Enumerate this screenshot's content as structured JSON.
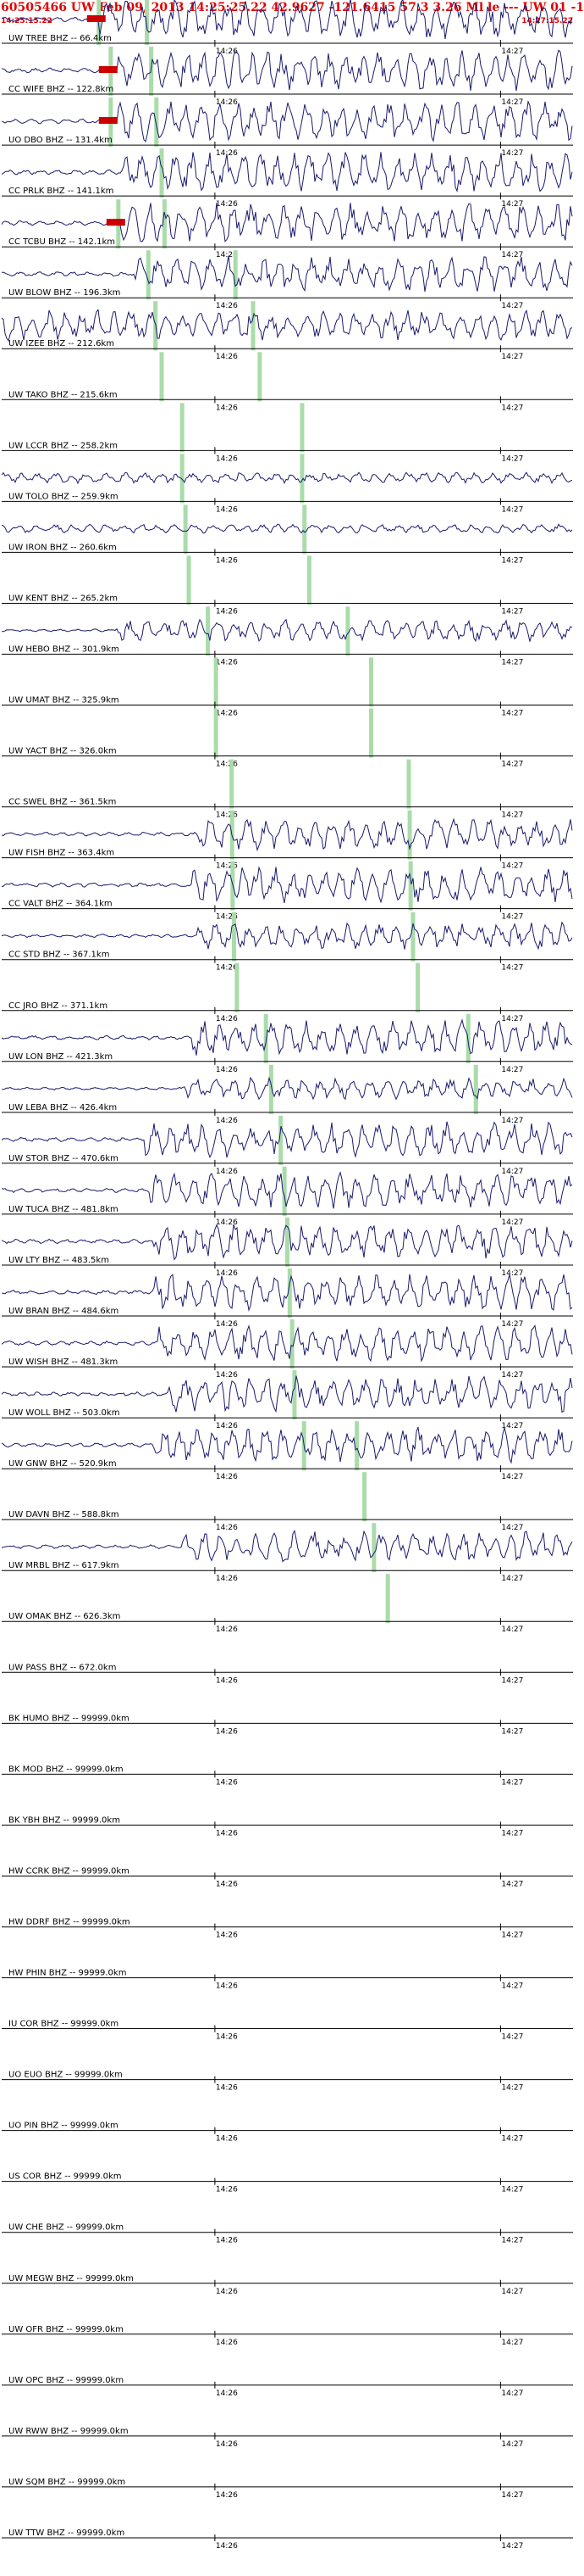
{
  "header": {
    "title": "60505466 UW Feb 09, 2013 14:25:25.22   42.9627 -121.6415 57.3 3.26 Ml le --- UW 01  -1",
    "start_time": "14:25:15.22",
    "end_time": "14:27:15.22"
  },
  "colors": {
    "trace": "#1a1a6e",
    "axis": "#000000",
    "pick": "#aadcaa",
    "marker": "#cc0000",
    "title": "#e00000"
  },
  "chart_data": {
    "type": "line",
    "x_unit": "seconds after 14:25:15.22",
    "xlim": [
      0,
      120
    ],
    "tick_labels": [
      "14:26",
      "14:27"
    ],
    "channels": [
      {
        "label": "UW TREE BHZ -- 66.4km",
        "amp": 0.9,
        "onset": 20.6,
        "p": 20.4,
        "s": 30.5,
        "marker": true
      },
      {
        "label": "CC WIFE BHZ -- 122.8km",
        "amp": 0.9,
        "onset": 24.0,
        "p": 22.9,
        "s": 31.4,
        "marker": true
      },
      {
        "label": "UO DBO BHZ -- 131.4km",
        "amp": 0.9,
        "onset": 24.0,
        "p": 22.9,
        "s": 32.5,
        "marker": true
      },
      {
        "label": "CC PRLK BHZ -- 141.1km",
        "amp": 0.9,
        "onset": 25.2,
        "p": null,
        "s": 33.6
      },
      {
        "label": "CC TCBU BHZ -- 142.1km",
        "amp": 0.9,
        "onset": 25.2,
        "p": 24.5,
        "s": 34.2,
        "marker": true
      },
      {
        "label": "UW BLOW BHZ -- 196.3km",
        "amp": 0.8,
        "onset": 28.0,
        "p": 30.8,
        "s": 49.1
      },
      {
        "label": "UW IZEE BHZ -- 212.6km",
        "amp": 0.7,
        "onset": 0,
        "p": 32.3,
        "s": 52.8
      },
      {
        "label": "UW TAKO BHZ -- 215.6km",
        "amp": 0,
        "onset": 0,
        "p": 33.6,
        "s": 54.2
      },
      {
        "label": "UW LCCR BHZ -- 258.2km",
        "amp": 0,
        "onset": 0,
        "p": 37.9,
        "s": 63.1
      },
      {
        "label": "UW TOLO BHZ -- 259.9km",
        "amp": 0.25,
        "onset": 0,
        "p": 37.9,
        "s": 63.1
      },
      {
        "label": "UW IRON BHZ -- 260.6km",
        "amp": 0.2,
        "onset": 0,
        "p": 38.6,
        "s": 63.6
      },
      {
        "label": "UW KENT BHZ -- 265.2km",
        "amp": 0,
        "onset": 0,
        "p": 39.3,
        "s": 64.6
      },
      {
        "label": "UW HEBO BHZ -- 301.9km",
        "amp": 0.5,
        "onset": 24.0,
        "p": 43.3,
        "s": 72.7
      },
      {
        "label": "UW UMAT BHZ -- 325.9km",
        "amp": 0,
        "onset": 0,
        "p": 45.0,
        "s": 77.6
      },
      {
        "label": "UW YACT BHZ -- 326.0km",
        "amp": 0,
        "onset": 0,
        "p": 45.0,
        "s": 77.6
      },
      {
        "label": "CC SWEL BHZ -- 361.5km",
        "amp": 0,
        "onset": 0,
        "p": 48.3,
        "s": 85.5
      },
      {
        "label": "UW FISH BHZ -- 363.4km",
        "amp": 0.7,
        "onset": 41.0,
        "p": 48.4,
        "s": 85.7
      },
      {
        "label": "CC VALT BHZ -- 364.1km",
        "amp": 0.8,
        "onset": 40.0,
        "p": 48.5,
        "s": 85.9
      },
      {
        "label": "CC STD BHZ -- 367.1km",
        "amp": 0.6,
        "onset": 41.0,
        "p": 48.8,
        "s": 86.4
      },
      {
        "label": "CC JRO BHZ -- 371.1km",
        "amp": 0,
        "onset": 0,
        "p": 49.4,
        "s": 87.4
      },
      {
        "label": "UW LON BHZ -- 421.3km",
        "amp": 0.8,
        "onset": 40.0,
        "p": 55.5,
        "s": 98.0
      },
      {
        "label": "UW LEBA BHZ -- 426.4km",
        "amp": 0.5,
        "onset": 38.0,
        "p": 56.6,
        "s": 99.6
      },
      {
        "label": "UW STOR BHZ -- 470.6km",
        "amp": 0.8,
        "onset": 30.0,
        "p": 58.6,
        "s": null
      },
      {
        "label": "UW TUCA BHZ -- 481.8km",
        "amp": 0.8,
        "onset": 31.0,
        "p": 59.4,
        "s": null
      },
      {
        "label": "UW LTY BHZ -- 483.5km",
        "amp": 0.8,
        "onset": 32.0,
        "p": 60.0,
        "s": null
      },
      {
        "label": "UW BRAN BHZ -- 484.6km",
        "amp": 0.8,
        "onset": 32.0,
        "p": 60.5,
        "s": null
      },
      {
        "label": "UW WISH BHZ -- 481.3km",
        "amp": 0.8,
        "onset": 33.0,
        "p": 61.0,
        "s": null
      },
      {
        "label": "UW WOLL BHZ -- 503.0km",
        "amp": 0.8,
        "onset": 35.0,
        "p": 61.5,
        "s": null
      },
      {
        "label": "UW GNW BHZ -- 520.9km",
        "amp": 0.8,
        "onset": 32.0,
        "p": 63.5,
        "s": 74.6
      },
      {
        "label": "UW DAVN BHZ -- 588.8km",
        "amp": 0,
        "onset": 0,
        "p": null,
        "s": 76.2
      },
      {
        "label": "UW MRBL BHZ -- 617.9km",
        "amp": 0.7,
        "onset": 38.0,
        "p": null,
        "s": 78.2
      },
      {
        "label": "UW OMAK BHZ -- 626.3km",
        "amp": 0,
        "onset": 0,
        "p": null,
        "s": 81.1
      },
      {
        "label": "UW PASS BHZ -- 672.0km",
        "amp": 0,
        "onset": 0,
        "p": null,
        "s": null
      },
      {
        "label": "BK HUMO BHZ -- 99999.0km",
        "amp": 0,
        "onset": 0,
        "p": null,
        "s": null
      },
      {
        "label": "BK MOD BHZ -- 99999.0km",
        "amp": 0,
        "onset": 0,
        "p": null,
        "s": null
      },
      {
        "label": "BK YBH BHZ -- 99999.0km",
        "amp": 0,
        "onset": 0,
        "p": null,
        "s": null
      },
      {
        "label": "HW CCRK BHZ -- 99999.0km",
        "amp": 0,
        "onset": 0,
        "p": null,
        "s": null
      },
      {
        "label": "HW DDRF BHZ -- 99999.0km",
        "amp": 0,
        "onset": 0,
        "p": null,
        "s": null
      },
      {
        "label": "HW PHIN BHZ -- 99999.0km",
        "amp": 0,
        "onset": 0,
        "p": null,
        "s": null
      },
      {
        "label": "IU COR BHZ -- 99999.0km",
        "amp": 0,
        "onset": 0,
        "p": null,
        "s": null
      },
      {
        "label": "UO EUO BHZ -- 99999.0km",
        "amp": 0,
        "onset": 0,
        "p": null,
        "s": null
      },
      {
        "label": "UO PIN BHZ -- 99999.0km",
        "amp": 0,
        "onset": 0,
        "p": null,
        "s": null
      },
      {
        "label": "US COR BHZ -- 99999.0km",
        "amp": 0,
        "onset": 0,
        "p": null,
        "s": null
      },
      {
        "label": "UW CHE BHZ -- 99999.0km",
        "amp": 0,
        "onset": 0,
        "p": null,
        "s": null
      },
      {
        "label": "UW MEGW BHZ -- 99999.0km",
        "amp": 0,
        "onset": 0,
        "p": null,
        "s": null
      },
      {
        "label": "UW OFR BHZ -- 99999.0km",
        "amp": 0,
        "onset": 0,
        "p": null,
        "s": null
      },
      {
        "label": "UW OPC BHZ -- 99999.0km",
        "amp": 0,
        "onset": 0,
        "p": null,
        "s": null
      },
      {
        "label": "UW RWW BHZ -- 99999.0km",
        "amp": 0,
        "onset": 0,
        "p": null,
        "s": null
      },
      {
        "label": "UW SQM BHZ -- 99999.0km",
        "amp": 0,
        "onset": 0,
        "p": null,
        "s": null
      },
      {
        "label": "UW TTW BHZ -- 99999.0km",
        "amp": 0,
        "onset": 0,
        "p": null,
        "s": null
      }
    ]
  }
}
